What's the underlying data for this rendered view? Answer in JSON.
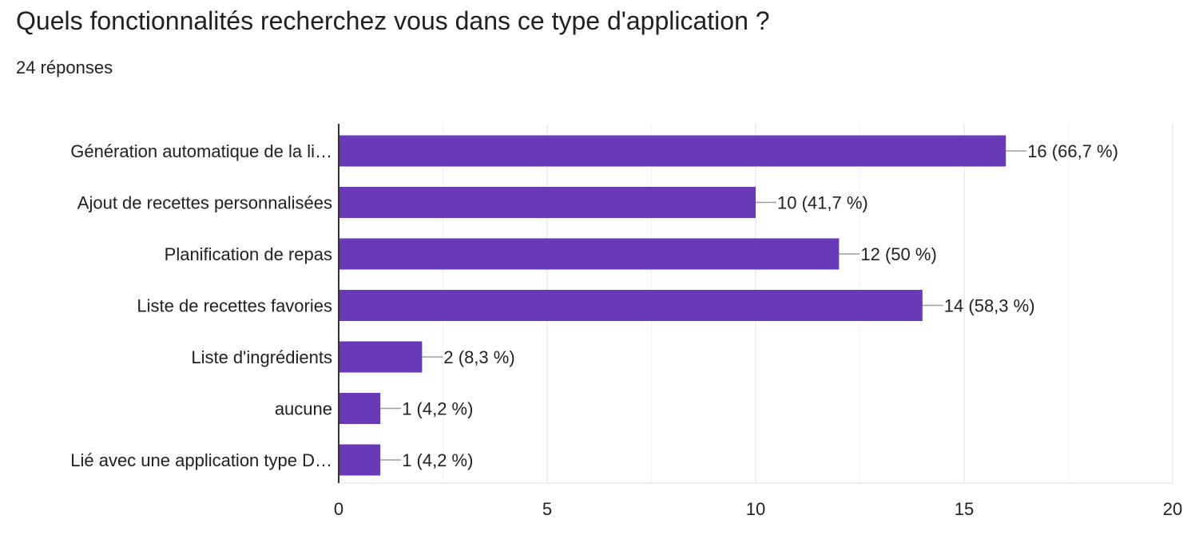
{
  "header": {
    "question": "Quels fonctionnalités recherchez vous dans ce type d'application ?",
    "responses": "24 réponses"
  },
  "colors": {
    "bar": "#673ab7",
    "grid": "#ebebeb",
    "axis": "#333333",
    "leader": "#9e9e9e"
  },
  "chart_data": {
    "type": "bar",
    "orientation": "horizontal",
    "categories": [
      "Génération automatique de la li…",
      "Ajout de recettes personnalisées",
      "Planification de repas",
      "Liste de recettes favories",
      "Liste d'ingrédients",
      "aucune",
      "Lié avec une application type D…"
    ],
    "values": [
      16,
      10,
      12,
      14,
      2,
      1,
      1
    ],
    "data_labels": [
      "16 (66,7 %)",
      "10 (41,7 %)",
      "12 (50 %)",
      "14 (58,3 %)",
      "2 (8,3 %)",
      "1 (4,2 %)",
      "1 (4,2 %)"
    ],
    "xlim": [
      0,
      20
    ],
    "xticks": [
      0,
      5,
      10,
      15,
      20
    ],
    "xtick_labels": [
      "0",
      "5",
      "10",
      "15",
      "20"
    ],
    "minor_gridlines": true,
    "legend": "none"
  }
}
